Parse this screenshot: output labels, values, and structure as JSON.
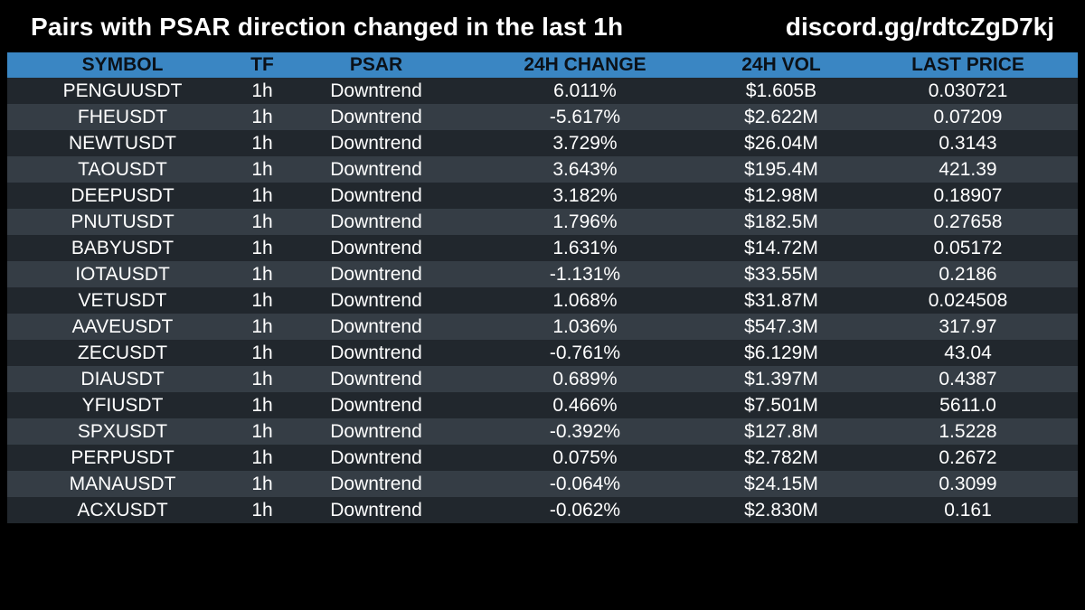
{
  "header": {
    "title": "Pairs with PSAR direction changed in the last 1h",
    "invite": "discord.gg/rdtcZgD7kj"
  },
  "table": {
    "columns": [
      "SYMBOL",
      "TF",
      "PSAR",
      "24H CHANGE",
      "24H VOL",
      "LAST PRICE"
    ],
    "rows": [
      [
        "PENGUUSDT",
        "1h",
        "Downtrend",
        "6.011%",
        "$1.605B",
        "0.030721"
      ],
      [
        "FHEUSDT",
        "1h",
        "Downtrend",
        "-5.617%",
        "$2.622M",
        "0.07209"
      ],
      [
        "NEWTUSDT",
        "1h",
        "Downtrend",
        "3.729%",
        "$26.04M",
        "0.3143"
      ],
      [
        "TAOUSDT",
        "1h",
        "Downtrend",
        "3.643%",
        "$195.4M",
        "421.39"
      ],
      [
        "DEEPUSDT",
        "1h",
        "Downtrend",
        "3.182%",
        "$12.98M",
        "0.18907"
      ],
      [
        "PNUTUSDT",
        "1h",
        "Downtrend",
        "1.796%",
        "$182.5M",
        "0.27658"
      ],
      [
        "BABYUSDT",
        "1h",
        "Downtrend",
        "1.631%",
        "$14.72M",
        "0.05172"
      ],
      [
        "IOTAUSDT",
        "1h",
        "Downtrend",
        "-1.131%",
        "$33.55M",
        "0.2186"
      ],
      [
        "VETUSDT",
        "1h",
        "Downtrend",
        "1.068%",
        "$31.87M",
        "0.024508"
      ],
      [
        "AAVEUSDT",
        "1h",
        "Downtrend",
        "1.036%",
        "$547.3M",
        "317.97"
      ],
      [
        "ZECUSDT",
        "1h",
        "Downtrend",
        "-0.761%",
        "$6.129M",
        "43.04"
      ],
      [
        "DIAUSDT",
        "1h",
        "Downtrend",
        "0.689%",
        "$1.397M",
        "0.4387"
      ],
      [
        "YFIUSDT",
        "1h",
        "Downtrend",
        "0.466%",
        "$7.501M",
        "5611.0"
      ],
      [
        "SPXUSDT",
        "1h",
        "Downtrend",
        "-0.392%",
        "$127.8M",
        "1.5228"
      ],
      [
        "PERPUSDT",
        "1h",
        "Downtrend",
        "0.075%",
        "$2.782M",
        "0.2672"
      ],
      [
        "MANAUSDT",
        "1h",
        "Downtrend",
        "-0.064%",
        "$24.15M",
        "0.3099"
      ],
      [
        "ACXUSDT",
        "1h",
        "Downtrend",
        "-0.062%",
        "$2.830M",
        "0.161"
      ]
    ]
  },
  "colors": {
    "background": "#000000",
    "header_bg": "#3a86c3",
    "row_odd": "#21272d",
    "row_even": "#353d45",
    "text": "#ffffff"
  }
}
